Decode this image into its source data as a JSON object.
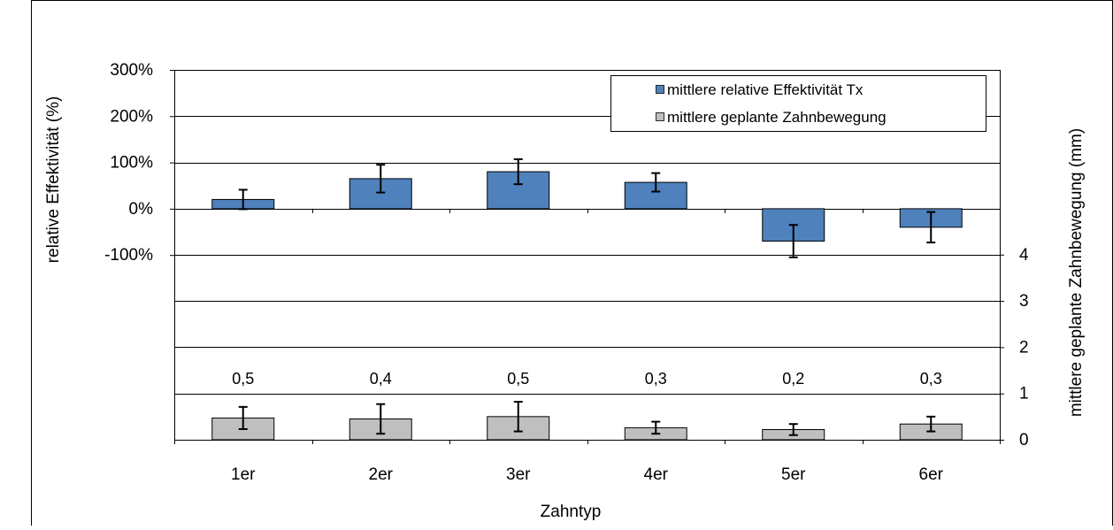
{
  "chart_data": {
    "type": "bar",
    "categories": [
      "1er",
      "2er",
      "3er",
      "4er",
      "5er",
      "6er"
    ],
    "xlabel": "Zahntyp",
    "ylabel_left": "relative Effektivität (%)",
    "ylabel_right": "mittlere geplante Zahnbewegung (mm)",
    "left_axis": {
      "ylim": [
        -100,
        300
      ],
      "ticks": [
        300,
        200,
        100,
        0,
        -100
      ],
      "tick_labels": [
        "300%",
        "200%",
        "100%",
        "0%",
        "-100%"
      ]
    },
    "right_axis": {
      "ylim": [
        0,
        4
      ],
      "ticks": [
        4,
        3,
        2,
        1,
        0
      ],
      "tick_labels": [
        "4",
        "3",
        "2",
        "1",
        "0"
      ]
    },
    "grid": true,
    "legend_position": "top-right",
    "series": [
      {
        "name": "mittlere relative Effektivität Tx",
        "axis": "left",
        "color": "#4F81BD",
        "values": [
          20,
          65,
          80,
          57,
          -70,
          -40
        ],
        "error": [
          21,
          30,
          27,
          20,
          35,
          33
        ]
      },
      {
        "name": "mittlere geplante Zahnbewegung",
        "axis": "right",
        "color": "#BFBFBF",
        "values": [
          0.47,
          0.45,
          0.5,
          0.26,
          0.22,
          0.34
        ],
        "error": [
          0.24,
          0.32,
          0.32,
          0.13,
          0.12,
          0.16
        ],
        "data_labels": [
          "0,5",
          "0,4",
          "0,5",
          "0,3",
          "0,2",
          "0,3"
        ]
      }
    ]
  }
}
